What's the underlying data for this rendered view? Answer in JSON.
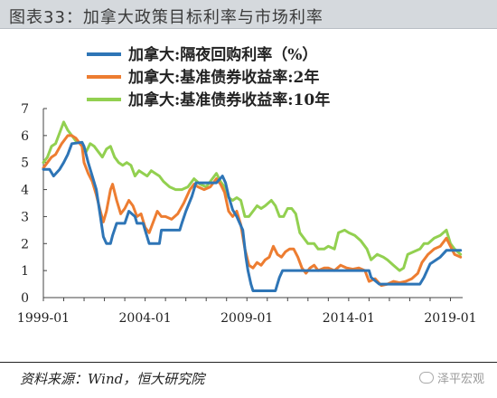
{
  "header": {
    "title": "图表33：加拿大政策目标利率与市场利率"
  },
  "footer": {
    "source": "资料来源：Wind，恒大研究院",
    "watermark": "泽平宏观"
  },
  "chart_data": {
    "type": "line",
    "title": "",
    "xlabel": "",
    "ylabel": "",
    "ylim": [
      0,
      7
    ],
    "yticks": [
      0,
      1,
      2,
      3,
      4,
      5,
      6,
      7
    ],
    "xlim": [
      1999.0,
      2019.6
    ],
    "xticks": [
      {
        "value": 1999.0,
        "label": "1999-01"
      },
      {
        "value": 2004.0,
        "label": "2004-01"
      },
      {
        "value": 2009.0,
        "label": "2009-01"
      },
      {
        "value": 2014.0,
        "label": "2014-01"
      },
      {
        "value": 2019.0,
        "label": "2019-01"
      }
    ],
    "grid": false,
    "legend_position": "top-left",
    "series": [
      {
        "name": "加拿大:隔夜回购利率（%）",
        "color": "#2e75b6",
        "points": [
          [
            1999.0,
            4.75
          ],
          [
            1999.3,
            4.75
          ],
          [
            1999.5,
            4.5
          ],
          [
            1999.8,
            4.75
          ],
          [
            2000.0,
            5.0
          ],
          [
            2000.2,
            5.3
          ],
          [
            2000.4,
            5.7
          ],
          [
            2000.9,
            5.75
          ],
          [
            2001.0,
            5.6
          ],
          [
            2001.2,
            5.0
          ],
          [
            2001.4,
            4.5
          ],
          [
            2001.6,
            4.0
          ],
          [
            2001.8,
            3.0
          ],
          [
            2001.95,
            2.25
          ],
          [
            2002.1,
            2.0
          ],
          [
            2002.3,
            2.0
          ],
          [
            2002.4,
            2.3
          ],
          [
            2002.6,
            2.75
          ],
          [
            2003.0,
            2.75
          ],
          [
            2003.2,
            3.2
          ],
          [
            2003.5,
            3.0
          ],
          [
            2003.6,
            2.75
          ],
          [
            2003.9,
            2.75
          ],
          [
            2004.0,
            2.5
          ],
          [
            2004.2,
            2.0
          ],
          [
            2004.7,
            2.0
          ],
          [
            2004.8,
            2.5
          ],
          [
            2005.0,
            2.5
          ],
          [
            2005.7,
            2.5
          ],
          [
            2005.8,
            2.75
          ],
          [
            2006.0,
            3.2
          ],
          [
            2006.3,
            3.75
          ],
          [
            2006.5,
            4.25
          ],
          [
            2007.5,
            4.25
          ],
          [
            2007.8,
            4.5
          ],
          [
            2007.95,
            4.25
          ],
          [
            2008.1,
            3.75
          ],
          [
            2008.3,
            3.25
          ],
          [
            2008.5,
            3.0
          ],
          [
            2008.8,
            2.5
          ],
          [
            2008.95,
            1.5
          ],
          [
            2009.05,
            1.0
          ],
          [
            2009.2,
            0.5
          ],
          [
            2009.3,
            0.25
          ],
          [
            2010.4,
            0.25
          ],
          [
            2010.5,
            0.5
          ],
          [
            2010.6,
            0.75
          ],
          [
            2010.75,
            1.0
          ],
          [
            2015.0,
            1.0
          ],
          [
            2015.1,
            0.75
          ],
          [
            2015.5,
            0.5
          ],
          [
            2017.5,
            0.5
          ],
          [
            2017.7,
            0.75
          ],
          [
            2017.85,
            1.0
          ],
          [
            2018.0,
            1.25
          ],
          [
            2018.5,
            1.5
          ],
          [
            2018.8,
            1.75
          ],
          [
            2019.5,
            1.75
          ]
        ]
      },
      {
        "name": "加拿大:基准债券收益率:2年",
        "color": "#ed7d31",
        "points": [
          [
            1999.0,
            4.8
          ],
          [
            1999.2,
            5.0
          ],
          [
            1999.4,
            5.2
          ],
          [
            1999.6,
            5.3
          ],
          [
            1999.9,
            5.7
          ],
          [
            2000.2,
            6.0
          ],
          [
            2000.4,
            6.0
          ],
          [
            2000.6,
            5.9
          ],
          [
            2000.9,
            5.6
          ],
          [
            2001.0,
            5.0
          ],
          [
            2001.2,
            4.6
          ],
          [
            2001.4,
            4.3
          ],
          [
            2001.6,
            3.8
          ],
          [
            2001.8,
            3.2
          ],
          [
            2001.95,
            2.8
          ],
          [
            2002.1,
            3.2
          ],
          [
            2002.3,
            4.0
          ],
          [
            2002.4,
            4.2
          ],
          [
            2002.6,
            3.6
          ],
          [
            2002.8,
            3.1
          ],
          [
            2003.0,
            3.3
          ],
          [
            2003.2,
            3.6
          ],
          [
            2003.4,
            3.4
          ],
          [
            2003.6,
            3.0
          ],
          [
            2003.8,
            3.1
          ],
          [
            2004.0,
            2.6
          ],
          [
            2004.2,
            2.4
          ],
          [
            2004.4,
            2.8
          ],
          [
            2004.6,
            3.2
          ],
          [
            2004.8,
            3.0
          ],
          [
            2005.0,
            3.0
          ],
          [
            2005.3,
            2.9
          ],
          [
            2005.6,
            3.1
          ],
          [
            2005.9,
            3.5
          ],
          [
            2006.2,
            4.0
          ],
          [
            2006.4,
            4.2
          ],
          [
            2006.6,
            4.1
          ],
          [
            2006.9,
            4.0
          ],
          [
            2007.2,
            4.1
          ],
          [
            2007.5,
            4.4
          ],
          [
            2007.7,
            4.2
          ],
          [
            2007.9,
            3.9
          ],
          [
            2008.1,
            3.2
          ],
          [
            2008.3,
            3.0
          ],
          [
            2008.5,
            3.2
          ],
          [
            2008.7,
            2.7
          ],
          [
            2008.9,
            1.8
          ],
          [
            2009.1,
            1.2
          ],
          [
            2009.3,
            1.1
          ],
          [
            2009.5,
            1.3
          ],
          [
            2009.7,
            1.2
          ],
          [
            2009.9,
            1.4
          ],
          [
            2010.1,
            1.5
          ],
          [
            2010.3,
            1.9
          ],
          [
            2010.5,
            1.6
          ],
          [
            2010.7,
            1.5
          ],
          [
            2010.9,
            1.7
          ],
          [
            2011.1,
            1.8
          ],
          [
            2011.3,
            1.8
          ],
          [
            2011.5,
            1.5
          ],
          [
            2011.7,
            1.1
          ],
          [
            2011.9,
            0.9
          ],
          [
            2012.1,
            1.1
          ],
          [
            2012.3,
            1.2
          ],
          [
            2012.5,
            1.0
          ],
          [
            2012.8,
            1.1
          ],
          [
            2013.0,
            1.1
          ],
          [
            2013.3,
            1.0
          ],
          [
            2013.6,
            1.2
          ],
          [
            2013.9,
            1.1
          ],
          [
            2014.2,
            1.05
          ],
          [
            2014.5,
            1.1
          ],
          [
            2014.8,
            1.0
          ],
          [
            2015.0,
            0.6
          ],
          [
            2015.3,
            0.7
          ],
          [
            2015.6,
            0.45
          ],
          [
            2015.9,
            0.5
          ],
          [
            2016.2,
            0.6
          ],
          [
            2016.5,
            0.55
          ],
          [
            2016.8,
            0.6
          ],
          [
            2017.1,
            0.7
          ],
          [
            2017.4,
            0.9
          ],
          [
            2017.6,
            1.3
          ],
          [
            2017.9,
            1.6
          ],
          [
            2018.2,
            1.8
          ],
          [
            2018.5,
            1.9
          ],
          [
            2018.8,
            2.2
          ],
          [
            2019.0,
            1.9
          ],
          [
            2019.2,
            1.6
          ],
          [
            2019.5,
            1.5
          ]
        ]
      },
      {
        "name": "加拿大:基准债券收益率:10年",
        "color": "#92d050",
        "points": [
          [
            1999.0,
            5.0
          ],
          [
            1999.2,
            5.2
          ],
          [
            1999.4,
            5.6
          ],
          [
            1999.6,
            5.7
          ],
          [
            1999.8,
            6.1
          ],
          [
            2000.0,
            6.5
          ],
          [
            2000.2,
            6.2
          ],
          [
            2000.4,
            6.0
          ],
          [
            2000.6,
            5.8
          ],
          [
            2000.9,
            5.7
          ],
          [
            2001.1,
            5.4
          ],
          [
            2001.3,
            5.7
          ],
          [
            2001.5,
            5.6
          ],
          [
            2001.7,
            5.4
          ],
          [
            2001.9,
            5.2
          ],
          [
            2002.1,
            5.5
          ],
          [
            2002.3,
            5.6
          ],
          [
            2002.5,
            5.2
          ],
          [
            2002.7,
            5.0
          ],
          [
            2002.9,
            4.9
          ],
          [
            2003.1,
            5.0
          ],
          [
            2003.3,
            4.9
          ],
          [
            2003.5,
            4.5
          ],
          [
            2003.7,
            4.7
          ],
          [
            2003.9,
            4.6
          ],
          [
            2004.1,
            4.5
          ],
          [
            2004.3,
            4.7
          ],
          [
            2004.5,
            4.6
          ],
          [
            2004.7,
            4.5
          ],
          [
            2004.9,
            4.3
          ],
          [
            2005.2,
            4.1
          ],
          [
            2005.5,
            4.0
          ],
          [
            2005.8,
            4.0
          ],
          [
            2006.1,
            4.1
          ],
          [
            2006.4,
            4.4
          ],
          [
            2006.7,
            4.2
          ],
          [
            2007.0,
            4.1
          ],
          [
            2007.3,
            4.4
          ],
          [
            2007.5,
            4.6
          ],
          [
            2007.7,
            4.3
          ],
          [
            2007.9,
            4.1
          ],
          [
            2008.1,
            3.7
          ],
          [
            2008.3,
            3.6
          ],
          [
            2008.5,
            3.7
          ],
          [
            2008.7,
            3.6
          ],
          [
            2008.9,
            3.0
          ],
          [
            2009.1,
            3.0
          ],
          [
            2009.3,
            3.2
          ],
          [
            2009.5,
            3.4
          ],
          [
            2009.7,
            3.3
          ],
          [
            2009.9,
            3.4
          ],
          [
            2010.2,
            3.6
          ],
          [
            2010.4,
            3.4
          ],
          [
            2010.6,
            3.0
          ],
          [
            2010.8,
            3.0
          ],
          [
            2011.0,
            3.3
          ],
          [
            2011.2,
            3.3
          ],
          [
            2011.4,
            3.1
          ],
          [
            2011.6,
            2.4
          ],
          [
            2011.8,
            2.2
          ],
          [
            2012.0,
            2.0
          ],
          [
            2012.3,
            2.0
          ],
          [
            2012.5,
            1.8
          ],
          [
            2012.8,
            1.8
          ],
          [
            2013.0,
            1.9
          ],
          [
            2013.3,
            1.8
          ],
          [
            2013.5,
            2.4
          ],
          [
            2013.8,
            2.5
          ],
          [
            2014.0,
            2.4
          ],
          [
            2014.3,
            2.3
          ],
          [
            2014.6,
            2.1
          ],
          [
            2014.9,
            1.8
          ],
          [
            2015.1,
            1.4
          ],
          [
            2015.4,
            1.6
          ],
          [
            2015.7,
            1.5
          ],
          [
            2015.9,
            1.4
          ],
          [
            2016.2,
            1.2
          ],
          [
            2016.5,
            1.0
          ],
          [
            2016.7,
            1.1
          ],
          [
            2016.9,
            1.6
          ],
          [
            2017.2,
            1.7
          ],
          [
            2017.5,
            1.8
          ],
          [
            2017.7,
            2.0
          ],
          [
            2017.9,
            2.0
          ],
          [
            2018.2,
            2.2
          ],
          [
            2018.5,
            2.3
          ],
          [
            2018.8,
            2.5
          ],
          [
            2019.0,
            2.0
          ],
          [
            2019.2,
            1.8
          ],
          [
            2019.5,
            1.6
          ]
        ]
      }
    ]
  }
}
